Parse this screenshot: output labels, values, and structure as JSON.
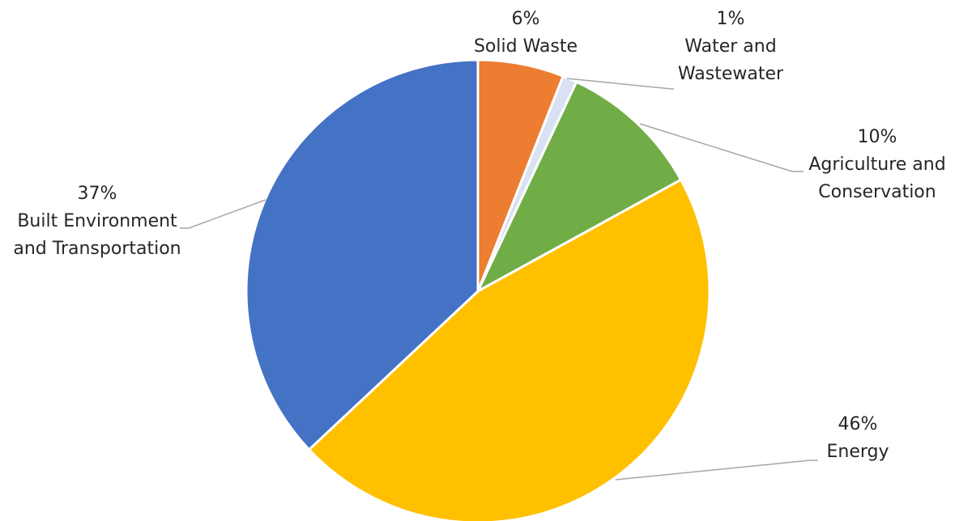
{
  "chart_data": {
    "type": "pie",
    "title": "",
    "slices": [
      {
        "category": "Solid Waste",
        "value": 6,
        "label_pct": "6%",
        "label_lines": [
          "Solid Waste"
        ],
        "color": "#ED7D31"
      },
      {
        "category": "Water and Wastewater",
        "value": 1,
        "label_pct": "1%",
        "label_lines": [
          "Water and",
          "Wastewater"
        ],
        "color": "#D9E1F2"
      },
      {
        "category": "Agriculture and Conservation",
        "value": 10,
        "label_pct": "10%",
        "label_lines": [
          "Agriculture and",
          "Conservation"
        ],
        "color": "#70AD47"
      },
      {
        "category": "Energy",
        "value": 46,
        "label_pct": "46%",
        "label_lines": [
          "Energy"
        ],
        "color": "#FFC000"
      },
      {
        "category": "Built Environment and Transportation",
        "value": 37,
        "label_pct": "37%",
        "label_lines": [
          "Built Environment",
          "and Transportation"
        ],
        "color": "#4472C4"
      }
    ],
    "start_angle_deg": 0,
    "direction": "clockwise",
    "legend": "none"
  }
}
